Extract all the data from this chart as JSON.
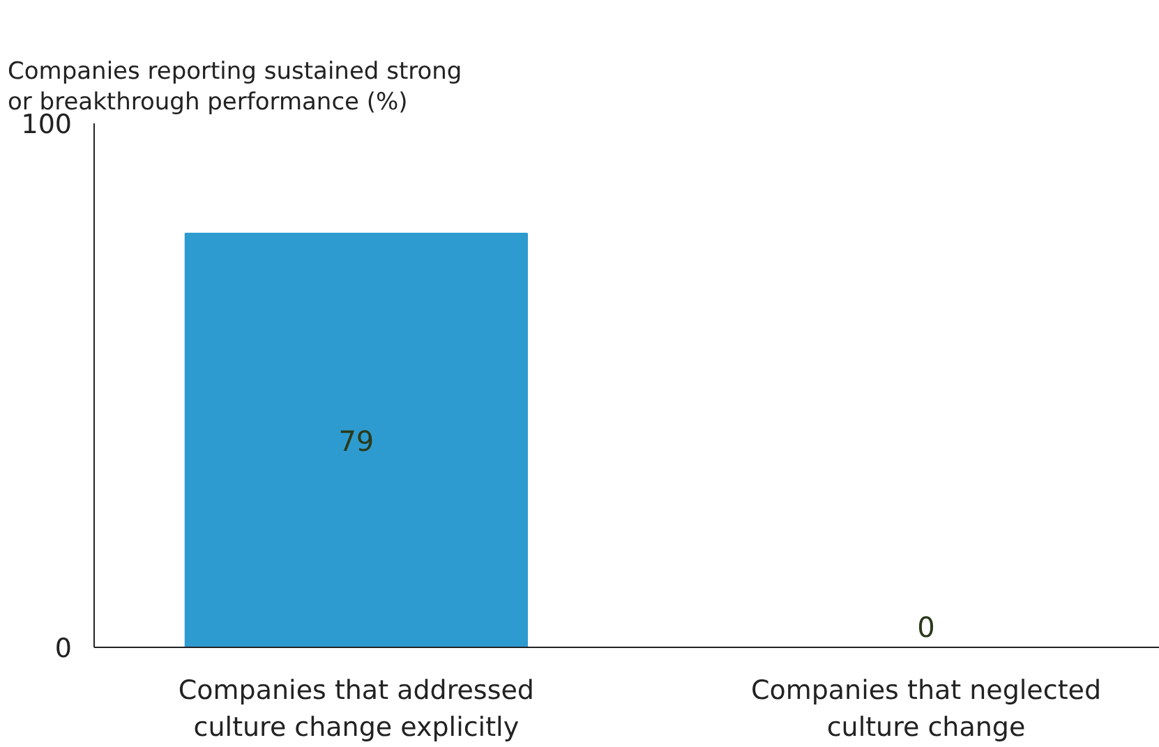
{
  "chart_data": {
    "type": "bar",
    "title": "Companies reporting sustained strong\nor breakthrough performance (%)",
    "categories": [
      "Companies that addressed culture change explicitly",
      "Companies that neglected culture change"
    ],
    "values": [
      79,
      0
    ],
    "color": "#2e9bd0",
    "ylim": [
      0,
      100
    ],
    "yticks": [
      0,
      100
    ],
    "grid": false,
    "data_labels": true
  }
}
